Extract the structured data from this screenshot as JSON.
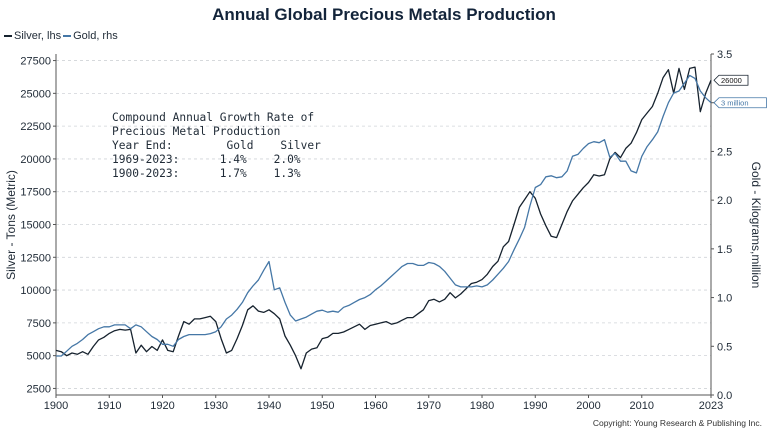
{
  "chart_data": {
    "type": "line",
    "title": "Annual Global Precious Metals Production",
    "ylabel": "Silver - Tons (Metric)",
    "y2label": "Gold - Kilograms,million",
    "xlim": [
      1900,
      2023
    ],
    "ylim": [
      2000,
      28000
    ],
    "y2lim": [
      0,
      3.5
    ],
    "x_ticks": [
      "1900",
      "1910",
      "1920",
      "1930",
      "1940",
      "1950",
      "1960",
      "1970",
      "1980",
      "1990",
      "2000",
      "2010",
      "2023"
    ],
    "y_ticks": [
      "2500",
      "5000",
      "7500",
      "10000",
      "12500",
      "15000",
      "17500",
      "20000",
      "22500",
      "25000",
      "27500"
    ],
    "y2_ticks": [
      "0.0",
      "0.5",
      "1.0",
      "1.5",
      "2.0",
      "2.5",
      "3.0",
      "3.5"
    ],
    "grid": true,
    "legend_position": "top-left",
    "series": [
      {
        "name": "Silver, lhs",
        "axis": "left",
        "color": "#16222e",
        "x": [
          1900,
          1901,
          1902,
          1903,
          1904,
          1905,
          1906,
          1907,
          1908,
          1909,
          1910,
          1911,
          1912,
          1913,
          1914,
          1915,
          1916,
          1917,
          1918,
          1919,
          1920,
          1921,
          1922,
          1923,
          1924,
          1925,
          1926,
          1927,
          1928,
          1929,
          1930,
          1931,
          1932,
          1933,
          1934,
          1935,
          1936,
          1937,
          1938,
          1939,
          1940,
          1941,
          1942,
          1943,
          1944,
          1945,
          1946,
          1947,
          1948,
          1949,
          1950,
          1951,
          1952,
          1953,
          1954,
          1955,
          1956,
          1957,
          1958,
          1959,
          1960,
          1961,
          1962,
          1963,
          1964,
          1965,
          1966,
          1967,
          1968,
          1969,
          1970,
          1971,
          1972,
          1973,
          1974,
          1975,
          1976,
          1977,
          1978,
          1979,
          1980,
          1981,
          1982,
          1983,
          1984,
          1985,
          1986,
          1987,
          1988,
          1989,
          1990,
          1991,
          1992,
          1993,
          1994,
          1995,
          1996,
          1997,
          1998,
          1999,
          2000,
          2001,
          2002,
          2003,
          2004,
          2005,
          2006,
          2007,
          2008,
          2009,
          2010,
          2011,
          2012,
          2013,
          2014,
          2015,
          2016,
          2017,
          2018,
          2019,
          2020,
          2021,
          2022,
          2023
        ],
        "values": [
          5400,
          5300,
          5000,
          5200,
          5100,
          5300,
          5100,
          5700,
          6200,
          6400,
          6700,
          6900,
          7000,
          6950,
          7000,
          5200,
          5800,
          5300,
          5700,
          5400,
          6200,
          5400,
          5300,
          6500,
          7600,
          7400,
          7800,
          7800,
          7900,
          8000,
          7600,
          6300,
          5200,
          5400,
          6300,
          7300,
          8500,
          8800,
          8400,
          8300,
          8500,
          8200,
          7800,
          6500,
          5800,
          5000,
          4000,
          5200,
          5500,
          5600,
          6300,
          6400,
          6700,
          6700,
          6800,
          7000,
          7200,
          7400,
          7000,
          7300,
          7400,
          7500,
          7600,
          7400,
          7500,
          7700,
          7900,
          7900,
          8200,
          8500,
          9200,
          9300,
          9100,
          9300,
          9800,
          9400,
          9700,
          10100,
          10500,
          10600,
          10800,
          11200,
          11800,
          12200,
          13300,
          13700,
          15000,
          16300,
          16900,
          17500,
          17000,
          15800,
          14900,
          14100,
          14000,
          15000,
          16000,
          16800,
          17300,
          17800,
          18200,
          18800,
          18700,
          18800,
          20000,
          20500,
          20100,
          20800,
          21200,
          22000,
          23000,
          23500,
          24000,
          25000,
          26200,
          26800,
          25000,
          26900,
          25300,
          26900,
          27000,
          23600,
          25000,
          26000
        ]
      },
      {
        "name": "Gold, rhs",
        "axis": "right",
        "color": "#4577a6",
        "x": [
          1900,
          1901,
          1902,
          1903,
          1904,
          1905,
          1906,
          1907,
          1908,
          1909,
          1910,
          1911,
          1912,
          1913,
          1914,
          1915,
          1916,
          1917,
          1918,
          1919,
          1920,
          1921,
          1922,
          1923,
          1924,
          1925,
          1926,
          1927,
          1928,
          1929,
          1930,
          1931,
          1932,
          1933,
          1934,
          1935,
          1936,
          1937,
          1938,
          1939,
          1940,
          1941,
          1942,
          1943,
          1944,
          1945,
          1946,
          1947,
          1948,
          1949,
          1950,
          1951,
          1952,
          1953,
          1954,
          1955,
          1956,
          1957,
          1958,
          1959,
          1960,
          1961,
          1962,
          1963,
          1964,
          1965,
          1966,
          1967,
          1968,
          1969,
          1970,
          1971,
          1972,
          1973,
          1974,
          1975,
          1976,
          1977,
          1978,
          1979,
          1980,
          1981,
          1982,
          1983,
          1984,
          1985,
          1986,
          1987,
          1988,
          1989,
          1990,
          1991,
          1992,
          1993,
          1994,
          1995,
          1996,
          1997,
          1998,
          1999,
          2000,
          2001,
          2002,
          2003,
          2004,
          2005,
          2006,
          2007,
          2008,
          2009,
          2010,
          2011,
          2012,
          2013,
          2014,
          2015,
          2016,
          2017,
          2018,
          2019,
          2020,
          2021,
          2022,
          2023
        ],
        "values": [
          0.4,
          0.4,
          0.45,
          0.5,
          0.53,
          0.57,
          0.62,
          0.65,
          0.68,
          0.7,
          0.7,
          0.72,
          0.72,
          0.72,
          0.68,
          0.72,
          0.7,
          0.65,
          0.6,
          0.57,
          0.52,
          0.52,
          0.5,
          0.57,
          0.6,
          0.62,
          0.62,
          0.62,
          0.62,
          0.63,
          0.65,
          0.7,
          0.78,
          0.82,
          0.88,
          0.95,
          1.05,
          1.12,
          1.18,
          1.28,
          1.37,
          1.08,
          1.1,
          0.95,
          0.82,
          0.76,
          0.78,
          0.8,
          0.83,
          0.86,
          0.87,
          0.85,
          0.86,
          0.85,
          0.9,
          0.92,
          0.95,
          0.98,
          1.0,
          1.03,
          1.08,
          1.12,
          1.17,
          1.22,
          1.27,
          1.32,
          1.35,
          1.35,
          1.33,
          1.33,
          1.36,
          1.35,
          1.32,
          1.27,
          1.2,
          1.13,
          1.11,
          1.11,
          1.11,
          1.12,
          1.11,
          1.13,
          1.18,
          1.24,
          1.3,
          1.37,
          1.49,
          1.6,
          1.72,
          1.94,
          2.13,
          2.16,
          2.24,
          2.25,
          2.23,
          2.24,
          2.3,
          2.45,
          2.47,
          2.53,
          2.58,
          2.6,
          2.59,
          2.62,
          2.44,
          2.48,
          2.4,
          2.4,
          2.3,
          2.28,
          2.45,
          2.55,
          2.62,
          2.7,
          2.86,
          3.0,
          3.1,
          3.12,
          3.2,
          3.28,
          3.25,
          3.12,
          3.05,
          3.0
        ]
      }
    ],
    "series_end_labels": [
      "26000",
      "3 million"
    ],
    "annotation": {
      "line1": "Compound Annual Growth Rate of",
      "line2": "Precious Metal Production",
      "header": "Year End:        Gold    Silver",
      "row1": "1969-2023:      1.4%    2.0%",
      "row2": "1900-2023:      1.7%    1.3%"
    },
    "copyright": "Copyright: Young Research & Publishing Inc."
  }
}
